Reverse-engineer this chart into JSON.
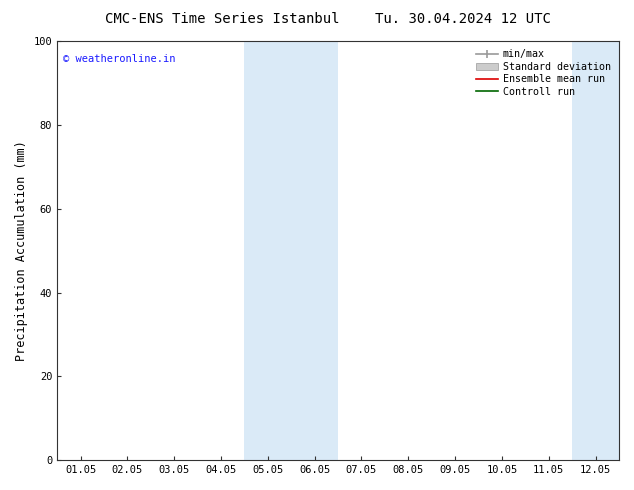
{
  "title_left": "CMC-ENS Time Series Istanbul",
  "title_right": "Tu. 30.04.2024 12 UTC",
  "ylabel": "Precipitation Accumulation (mm)",
  "ylim": [
    0,
    100
  ],
  "yticks": [
    0,
    20,
    40,
    60,
    80,
    100
  ],
  "x_labels": [
    "01.05",
    "02.05",
    "03.05",
    "04.05",
    "05.05",
    "06.05",
    "07.05",
    "08.05",
    "09.05",
    "10.05",
    "11.05",
    "12.05"
  ],
  "x_values": [
    0,
    1,
    2,
    3,
    4,
    5,
    6,
    7,
    8,
    9,
    10,
    11
  ],
  "shaded_regions": [
    {
      "xmin": 3.5,
      "xmax": 5.5,
      "color": "#daeaf7"
    },
    {
      "xmin": 10.5,
      "xmax": 12.0,
      "color": "#daeaf7"
    }
  ],
  "watermark_text": "© weatheronline.in",
  "watermark_color": "#1a1aff",
  "legend_entries": [
    {
      "label": "min/max",
      "color": "#999999",
      "lw": 1.2
    },
    {
      "label": "Standard deviation",
      "color": "#cccccc",
      "lw": 5
    },
    {
      "label": "Ensemble mean run",
      "color": "#dd0000",
      "lw": 1.2
    },
    {
      "label": "Controll run",
      "color": "#006600",
      "lw": 1.2
    }
  ],
  "bg_color": "#ffffff",
  "title_fontsize": 10,
  "tick_fontsize": 7.5,
  "label_fontsize": 8.5
}
